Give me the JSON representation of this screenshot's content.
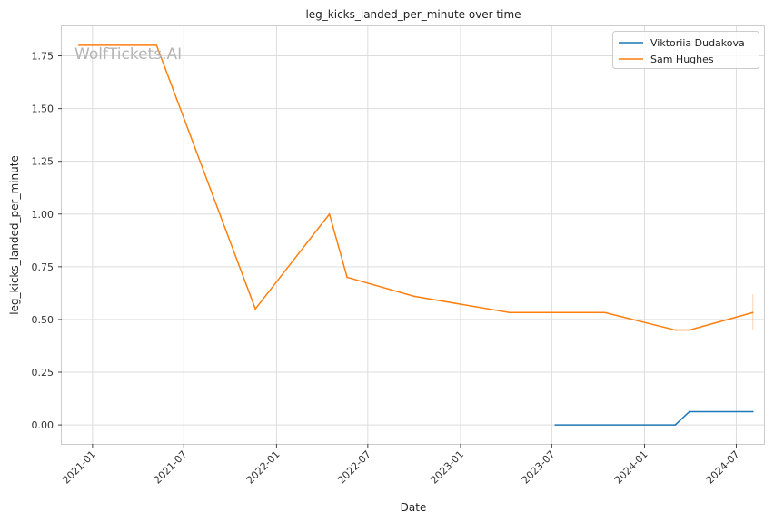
{
  "chart_data": {
    "type": "line",
    "title": "leg_kicks_landed_per_minute over time",
    "xlabel": "Date",
    "ylabel": "leg_kicks_landed_per_minute",
    "watermark": "WolfTickets.AI",
    "x_ticks": [
      "2021-01",
      "2021-07",
      "2022-01",
      "2022-07",
      "2023-01",
      "2023-07",
      "2024-01",
      "2024-07"
    ],
    "y_ticks": [
      "0.00",
      "0.25",
      "0.50",
      "0.75",
      "1.00",
      "1.25",
      "1.50",
      "1.75"
    ],
    "xlim": [
      "2020-11-01",
      "2024-08-25"
    ],
    "ylim": [
      -0.09,
      1.89
    ],
    "grid": true,
    "legend_position": "top-right",
    "series": [
      {
        "name": "Viktoriia Dudakova",
        "color": "#1f77b4",
        "points": [
          {
            "x": "2023-07-08",
            "y": 0.0
          },
          {
            "x": "2024-03-02",
            "y": 0.0
          },
          {
            "x": "2024-03-30",
            "y": 0.063
          },
          {
            "x": "2024-08-03",
            "y": 0.063
          }
        ]
      },
      {
        "name": "Sam Hughes",
        "color": "#ff7f0e",
        "points": [
          {
            "x": "2020-12-05",
            "y": 1.8
          },
          {
            "x": "2021-05-08",
            "y": 1.8
          },
          {
            "x": "2021-11-20",
            "y": 0.55
          },
          {
            "x": "2022-04-16",
            "y": 1.0
          },
          {
            "x": "2022-05-21",
            "y": 0.7
          },
          {
            "x": "2022-10-01",
            "y": 0.61
          },
          {
            "x": "2023-04-08",
            "y": 0.533
          },
          {
            "x": "2023-10-14",
            "y": 0.533
          },
          {
            "x": "2024-03-02",
            "y": 0.45
          },
          {
            "x": "2024-03-30",
            "y": 0.45
          },
          {
            "x": "2024-08-03",
            "y": 0.533
          }
        ],
        "error_bar": {
          "x": "2024-08-03",
          "low": 0.45,
          "high": 0.62
        }
      }
    ]
  }
}
